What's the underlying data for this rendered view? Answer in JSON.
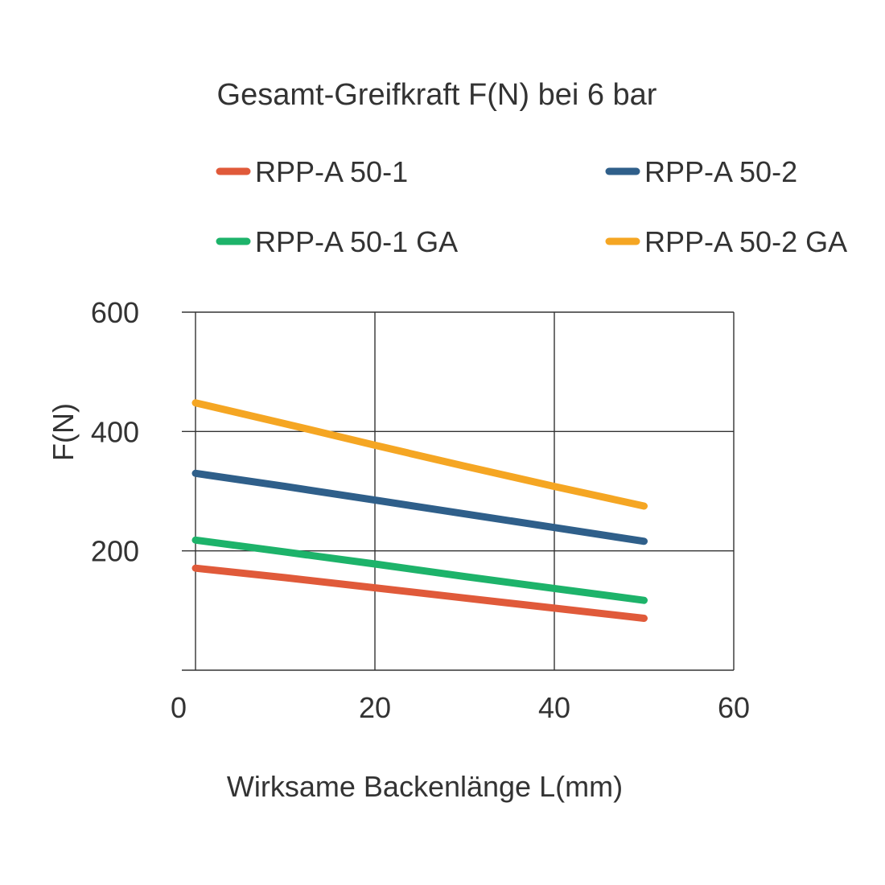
{
  "chart_data": {
    "type": "line",
    "title": "Gesamt-Greifkraft F(N) bei 6 bar",
    "xlabel": "Wirksame Backenlänge L(mm)",
    "ylabel": "F(N)",
    "xlim": [
      0,
      60
    ],
    "ylim": [
      0,
      600
    ],
    "xticks": [
      0,
      20,
      40,
      60
    ],
    "yticks": [
      200,
      400,
      600
    ],
    "grid": true,
    "legend_position": "top",
    "series": [
      {
        "name": "RPP-A 50-1",
        "color": "#e05a3a",
        "x": [
          0,
          10,
          20,
          30,
          40,
          50
        ],
        "y": [
          171,
          155,
          138,
          121,
          104,
          87
        ]
      },
      {
        "name": "RPP-A 50-2",
        "color": "#2f5f8a",
        "x": [
          0,
          10,
          20,
          30,
          40,
          50
        ],
        "y": [
          330,
          308,
          285,
          262,
          239,
          216
        ]
      },
      {
        "name": "RPP-A 50-1 GA",
        "color": "#1db36a",
        "x": [
          0,
          10,
          20,
          30,
          40,
          50
        ],
        "y": [
          218,
          198,
          178,
          157,
          137,
          117
        ]
      },
      {
        "name": "RPP-A 50-2 GA",
        "color": "#f5a623",
        "x": [
          0,
          10,
          20,
          30,
          40,
          50
        ],
        "y": [
          448,
          413,
          377,
          342,
          308,
          275
        ]
      }
    ]
  }
}
